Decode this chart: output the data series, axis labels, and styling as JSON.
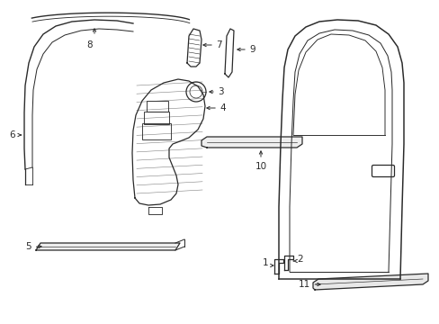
{
  "bg_color": "#ffffff",
  "line_color": "#2a2a2a",
  "lw": 0.9,
  "fig_w": 4.89,
  "fig_h": 3.6
}
